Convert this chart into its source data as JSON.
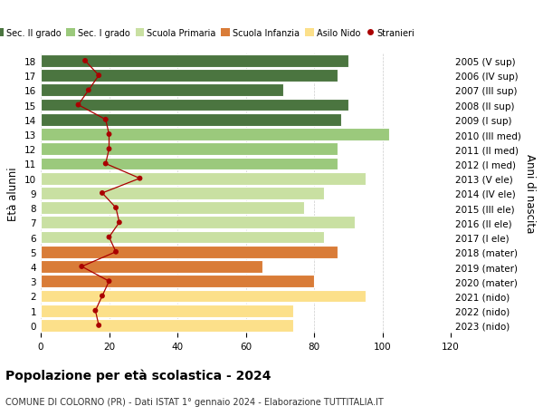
{
  "ages": [
    0,
    1,
    2,
    3,
    4,
    5,
    6,
    7,
    8,
    9,
    10,
    11,
    12,
    13,
    14,
    15,
    16,
    17,
    18
  ],
  "years": [
    "2023 (nido)",
    "2022 (nido)",
    "2021 (nido)",
    "2020 (mater)",
    "2019 (mater)",
    "2018 (mater)",
    "2017 (I ele)",
    "2016 (II ele)",
    "2015 (III ele)",
    "2014 (IV ele)",
    "2013 (V ele)",
    "2012 (I med)",
    "2011 (II med)",
    "2010 (III med)",
    "2009 (I sup)",
    "2008 (II sup)",
    "2007 (III sup)",
    "2006 (IV sup)",
    "2005 (V sup)"
  ],
  "bar_values": [
    74,
    74,
    95,
    80,
    65,
    87,
    83,
    92,
    77,
    83,
    95,
    87,
    87,
    102,
    88,
    90,
    71,
    87,
    90
  ],
  "stranieri": [
    17,
    16,
    18,
    20,
    12,
    22,
    20,
    23,
    22,
    18,
    29,
    19,
    20,
    20,
    19,
    11,
    14,
    17,
    13
  ],
  "bar_colors": [
    "#fce08a",
    "#fce08a",
    "#fce08a",
    "#d97c38",
    "#d97c38",
    "#d97c38",
    "#c9e0a2",
    "#c9e0a2",
    "#c9e0a2",
    "#c9e0a2",
    "#c9e0a2",
    "#9bc97c",
    "#9bc97c",
    "#9bc97c",
    "#4b7540",
    "#4b7540",
    "#4b7540",
    "#4b7540",
    "#4b7540"
  ],
  "legend_labels": [
    "Sec. II grado",
    "Sec. I grado",
    "Scuola Primaria",
    "Scuola Infanzia",
    "Asilo Nido",
    "Stranieri"
  ],
  "legend_colors": [
    "#4b7540",
    "#9bc97c",
    "#c9e0a2",
    "#d97c38",
    "#fce08a",
    "#cc0000"
  ],
  "title": "Popolazione per età scolastica - 2024",
  "subtitle": "COMUNE DI COLORNO (PR) - Dati ISTAT 1° gennaio 2024 - Elaborazione TUTTITALIA.IT",
  "ylabel_left": "Età alunni",
  "ylabel_right": "Anni di nascita",
  "xlim": [
    0,
    120
  ],
  "xticks": [
    0,
    20,
    40,
    60,
    80,
    100,
    120
  ],
  "bg_color": "#ffffff",
  "grid_color": "#cccccc",
  "bar_height": 0.85,
  "stranieri_color": "#aa0000",
  "stranieri_line_color": "#aa0000"
}
